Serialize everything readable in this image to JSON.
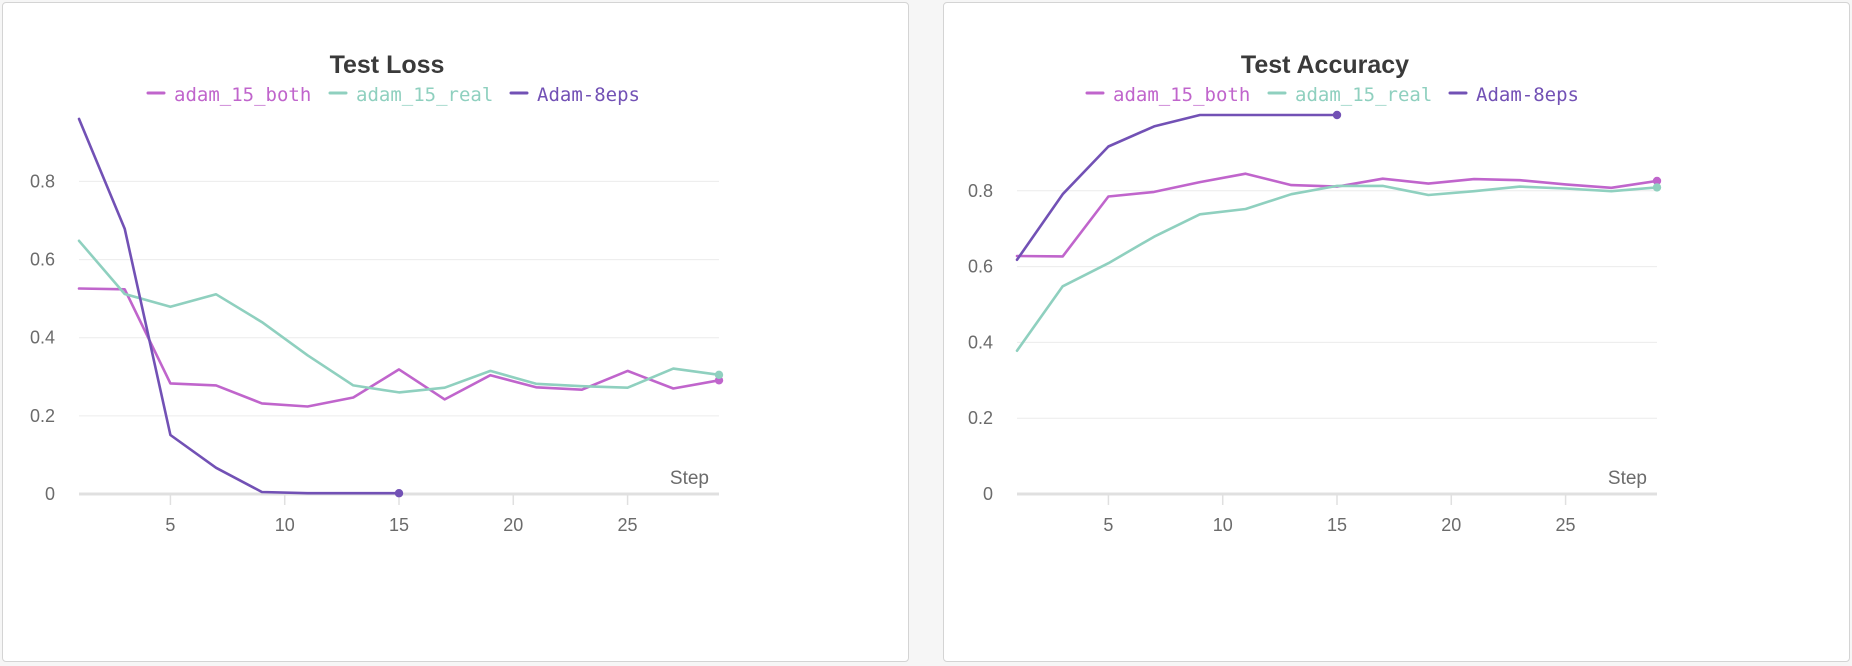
{
  "chart_data": [
    {
      "type": "line",
      "title": "Test Loss",
      "xlabel": "Step",
      "ylabel": "",
      "xlim": [
        1,
        29
      ],
      "ylim": [
        0,
        0.97
      ],
      "xticks": [
        5,
        10,
        15,
        20,
        25
      ],
      "yticks": [
        0,
        0.2,
        0.4,
        0.6,
        0.8
      ],
      "ytick_labels": [
        "0",
        "0.2",
        "0.4",
        "0.6",
        "0.8"
      ],
      "grid": true,
      "legend_position": "top-center",
      "series": [
        {
          "name": "adam_15_both",
          "color": "#c065cc",
          "x": [
            1,
            3,
            5,
            7,
            9,
            11,
            13,
            15,
            17,
            19,
            21,
            23,
            25,
            27,
            29
          ],
          "y": [
            0.526,
            0.524,
            0.283,
            0.278,
            0.232,
            0.224,
            0.247,
            0.319,
            0.242,
            0.304,
            0.273,
            0.267,
            0.315,
            0.27,
            0.291
          ]
        },
        {
          "name": "adam_15_real",
          "color": "#8fd0bf",
          "x": [
            1,
            3,
            5,
            7,
            9,
            11,
            13,
            15,
            17,
            19,
            21,
            23,
            25,
            27,
            29
          ],
          "y": [
            0.648,
            0.512,
            0.479,
            0.511,
            0.44,
            0.355,
            0.278,
            0.26,
            0.272,
            0.315,
            0.282,
            0.276,
            0.272,
            0.321,
            0.305
          ]
        },
        {
          "name": "Adam-8eps",
          "color": "#7251b5",
          "x": [
            1,
            3,
            5,
            7,
            9,
            11,
            13,
            15
          ],
          "y": [
            0.96,
            0.679,
            0.151,
            0.067,
            0.005,
            0.002,
            0.002,
            0.002
          ]
        }
      ]
    },
    {
      "type": "line",
      "title": "Test Accuracy",
      "xlabel": "Step",
      "ylabel": "",
      "xlim": [
        1,
        29
      ],
      "ylim": [
        0,
        1.0
      ],
      "xticks": [
        5,
        10,
        15,
        20,
        25
      ],
      "yticks": [
        0,
        0.2,
        0.4,
        0.6,
        0.8
      ],
      "ytick_labels": [
        "0",
        "0.2",
        "0.4",
        "0.6",
        "0.8"
      ],
      "grid": true,
      "legend_position": "top-center",
      "series": [
        {
          "name": "adam_15_both",
          "color": "#c065cc",
          "x": [
            1,
            3,
            5,
            7,
            9,
            11,
            13,
            15,
            17,
            19,
            21,
            23,
            25,
            27,
            29
          ],
          "y": [
            0.628,
            0.627,
            0.785,
            0.797,
            0.823,
            0.845,
            0.815,
            0.811,
            0.832,
            0.819,
            0.831,
            0.828,
            0.817,
            0.808,
            0.826
          ]
        },
        {
          "name": "adam_15_real",
          "color": "#8fd0bf",
          "x": [
            1,
            3,
            5,
            7,
            9,
            11,
            13,
            15,
            17,
            19,
            21,
            23,
            25,
            27,
            29
          ],
          "y": [
            0.378,
            0.548,
            0.609,
            0.679,
            0.738,
            0.752,
            0.791,
            0.813,
            0.813,
            0.789,
            0.799,
            0.811,
            0.806,
            0.799,
            0.809
          ]
        },
        {
          "name": "Adam-8eps",
          "color": "#7251b5",
          "x": [
            1,
            3,
            5,
            7,
            9,
            11,
            13,
            15
          ],
          "y": [
            0.618,
            0.791,
            0.917,
            0.97,
            1.0,
            1.0,
            1.0,
            1.0
          ]
        }
      ]
    }
  ]
}
